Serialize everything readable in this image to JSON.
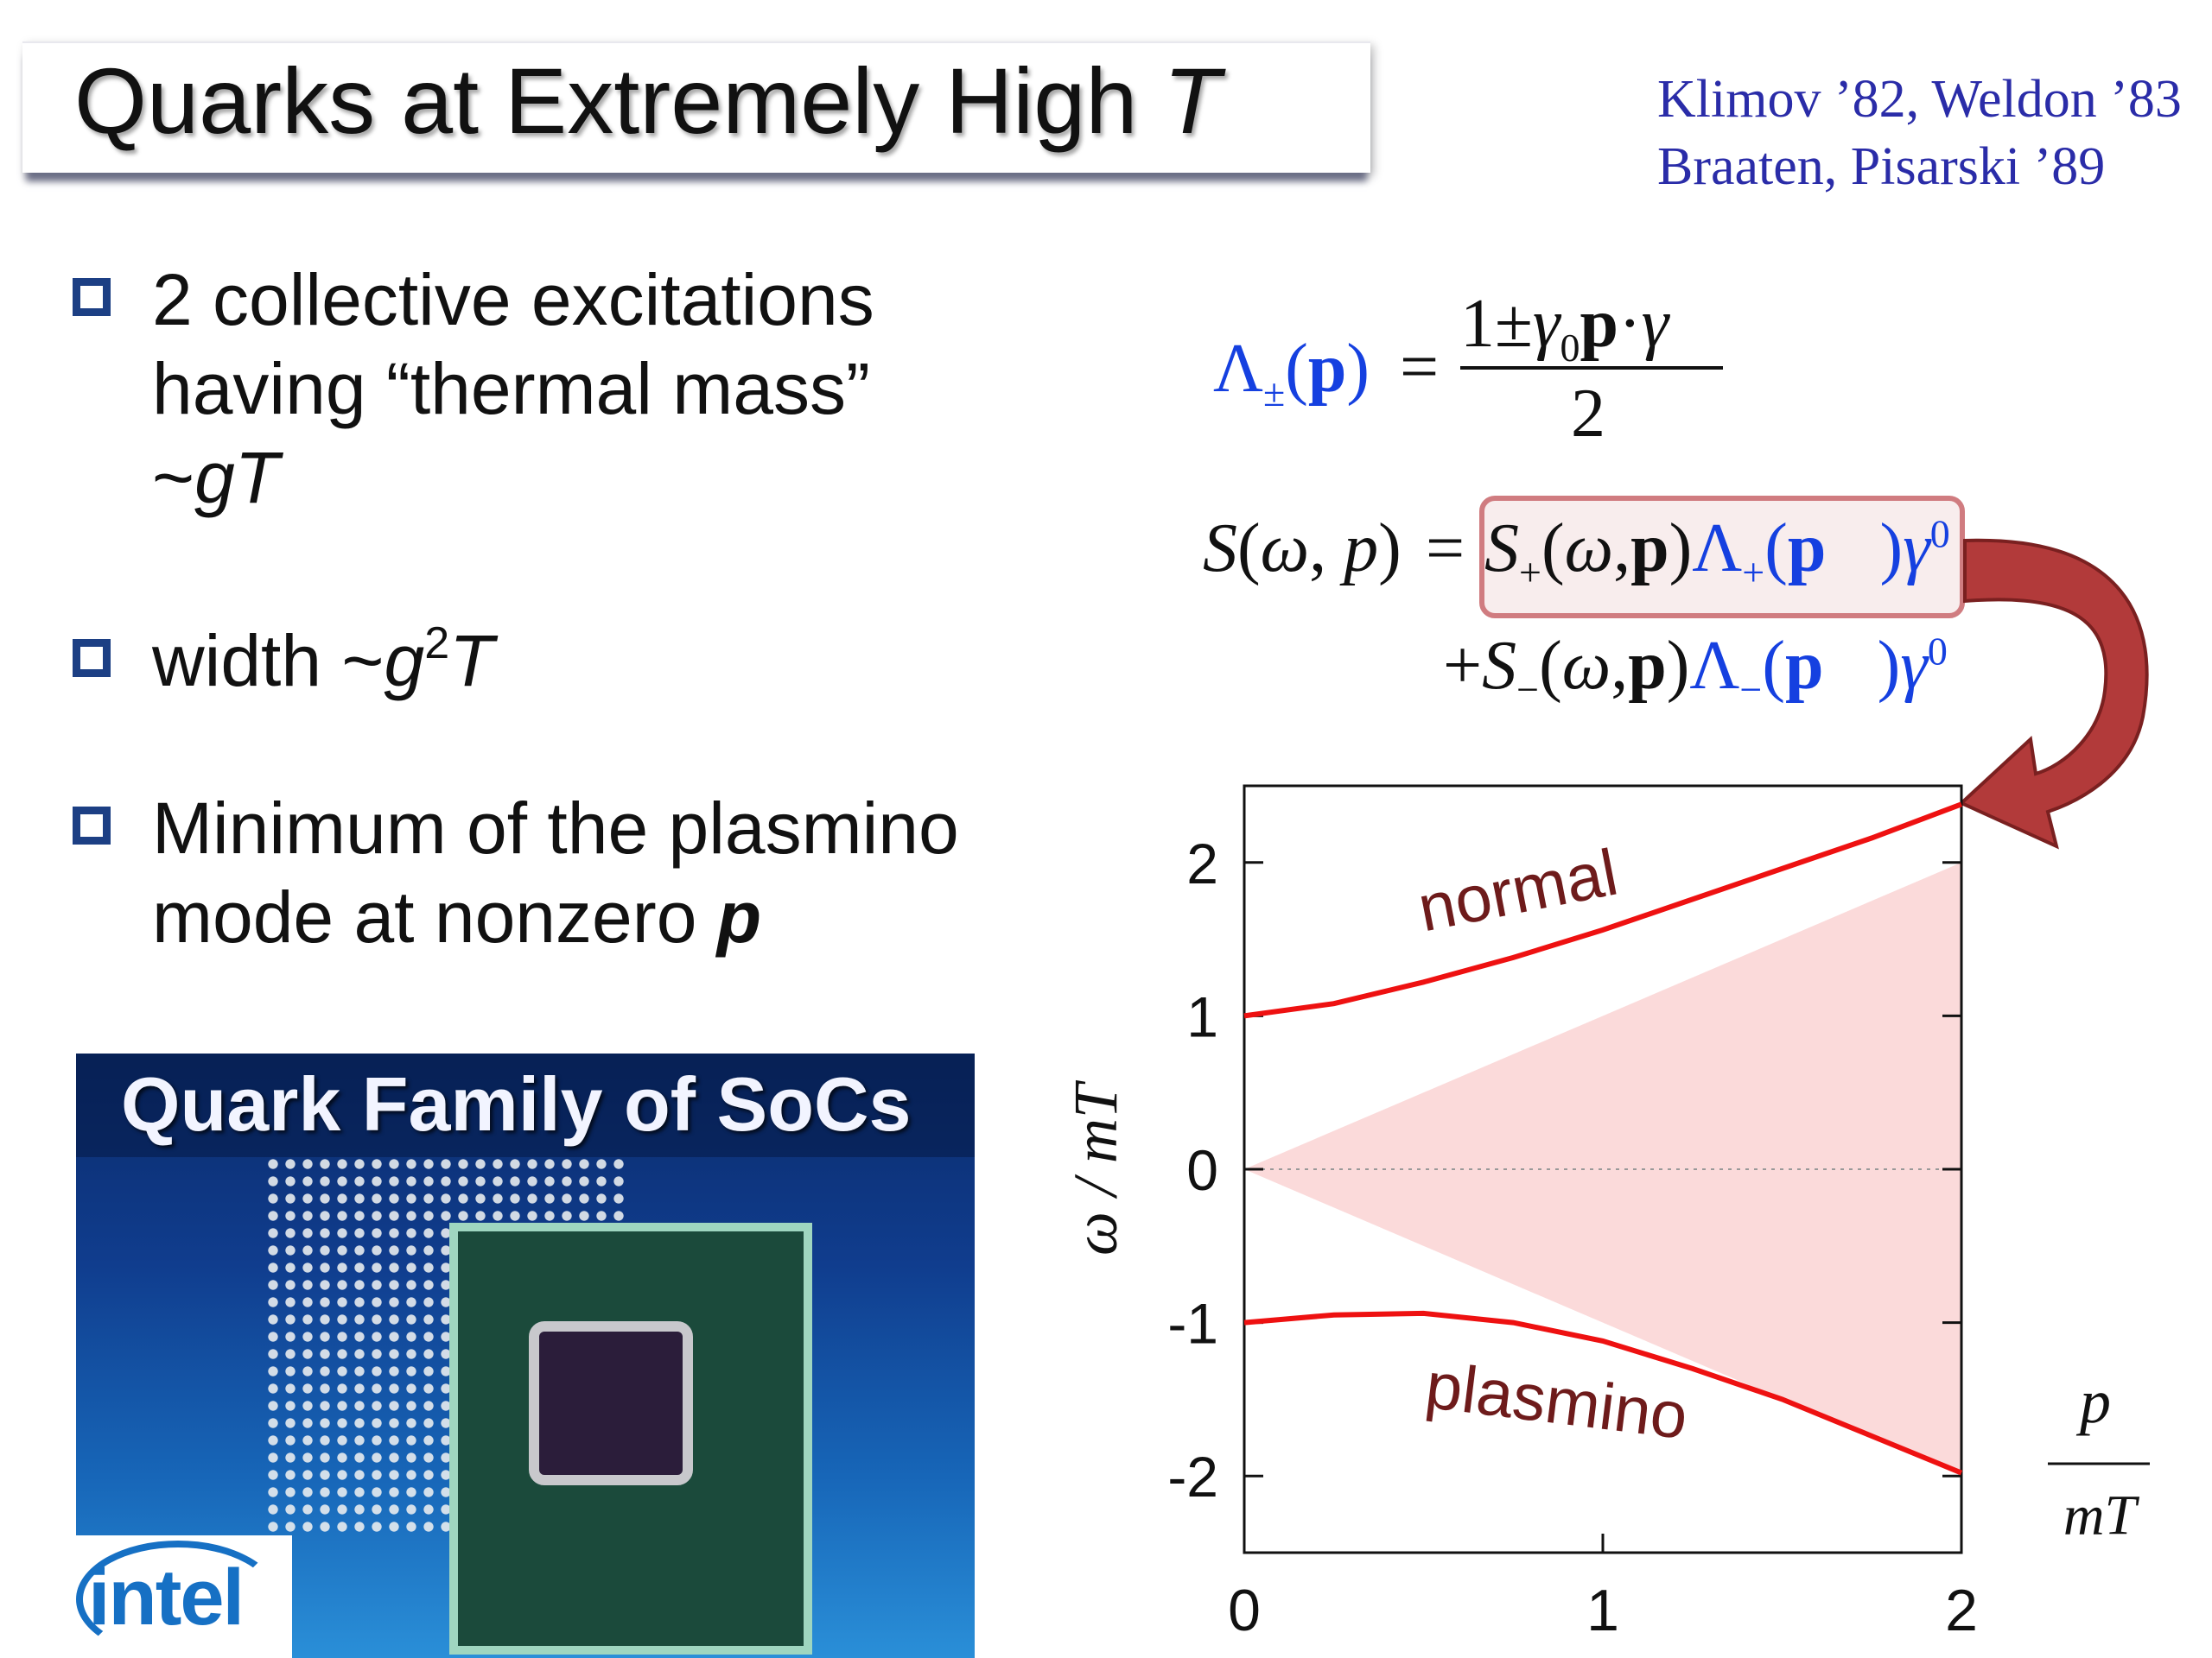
{
  "title": {
    "main": "Quarks at Extremely High",
    "var": "T"
  },
  "references": [
    "Klimov ’82, Weldon ’83",
    "Braaten, Pisarski ’89"
  ],
  "bullets": [
    {
      "line1": "2 collective excitations",
      "line2": "having “thermal mass”",
      "line3_prefix": "~",
      "line3_italic": "gT"
    },
    {
      "prefix": "width ~",
      "g": "g",
      "exp": "2",
      "T": "T"
    },
    {
      "line1": "Minimum of the plasmino",
      "line2_text": "mode at nonzero ",
      "line2_bold": "p"
    }
  ],
  "formula1": {
    "lhs": "Λ±(p)",
    "eq": "=",
    "numerator": "1± γ0p · γ⃗",
    "denominator": "2"
  },
  "formula2": {
    "lhs": "S(ω, p)",
    "eq": "=",
    "term_plus": "S+(ω,p)",
    "lambda_plus": "Λ+(p⃗)",
    "gamma_plus": "γ⁰",
    "term_minus": "+S−(ω,p)",
    "lambda_minus": "Λ−(p⃗)",
    "gamma_minus": "γ⁰"
  },
  "photo": {
    "caption": "Quark Family of SoCs",
    "logo": "intel"
  },
  "chart_data": {
    "type": "line",
    "title": "",
    "ylabel": "ω / m_T",
    "xlabel": "p / m_T",
    "xlabel_num": "p",
    "xlabel_den": "m_T",
    "xlim": [
      0,
      2
    ],
    "ylim": [
      -2.5,
      2.5
    ],
    "x_ticks": [
      "0",
      "1",
      "2"
    ],
    "y_ticks": [
      "2",
      "1",
      "0",
      "-1",
      "-2"
    ],
    "y_tick_values": [
      2,
      1,
      0,
      -1,
      -2
    ],
    "series": [
      {
        "name": "normal",
        "x": [
          0,
          0.25,
          0.5,
          0.75,
          1.0,
          1.25,
          1.5,
          1.75,
          2.0
        ],
        "y": [
          1.0,
          1.08,
          1.22,
          1.38,
          1.56,
          1.76,
          1.96,
          2.16,
          2.38
        ]
      },
      {
        "name": "plasmino",
        "x": [
          0,
          0.25,
          0.5,
          0.75,
          1.0,
          1.25,
          1.5,
          1.75,
          2.0
        ],
        "y": [
          -1.0,
          -0.95,
          -0.94,
          -1.0,
          -1.12,
          -1.3,
          -1.5,
          -1.74,
          -1.98
        ]
      }
    ],
    "shaded_region": "light-cone |ω| < p",
    "annotations": [
      "normal",
      "plasmino"
    ],
    "colors": {
      "curve": "#ee1111",
      "cone": "#fbdada",
      "label": "#6e1b1b",
      "arrow": "#b23a3a"
    }
  }
}
